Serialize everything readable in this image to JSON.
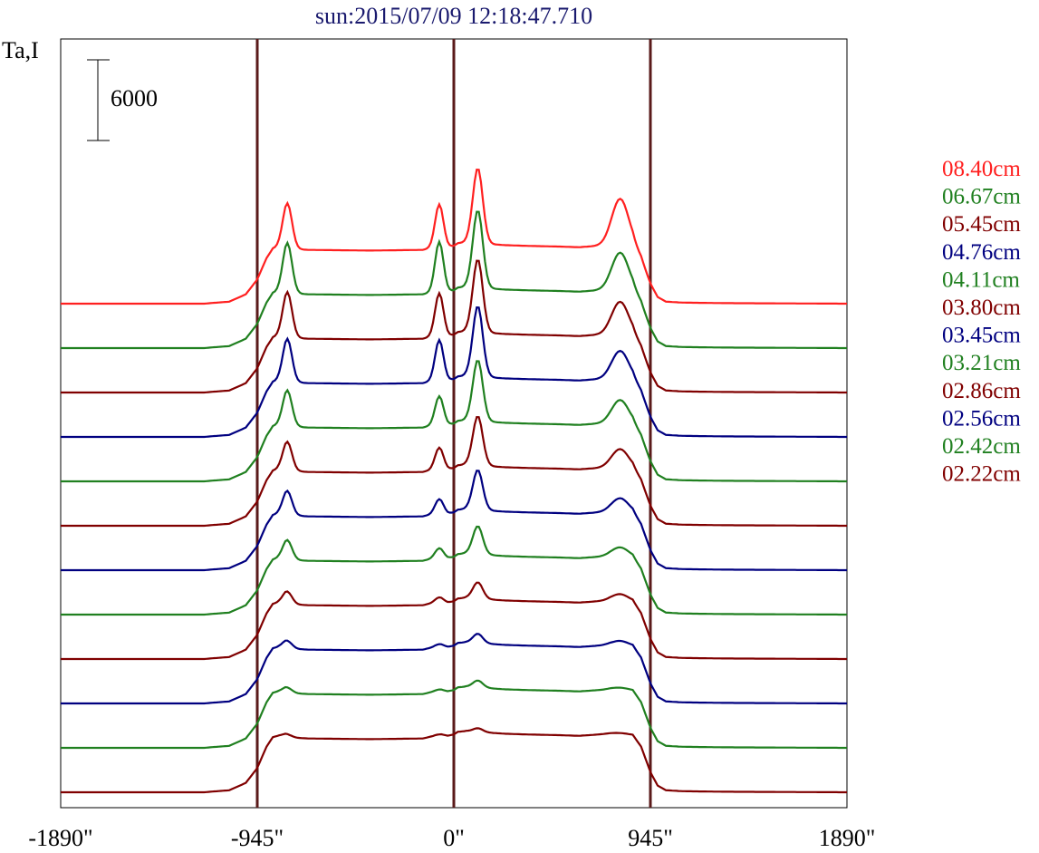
{
  "chart_data": {
    "type": "line",
    "title": "sun:2015/07/09 12:18:47.710",
    "ylabel": "Ta,I",
    "xlim": [
      -1890,
      1890
    ],
    "x_ticks": [
      -1890,
      -945,
      0,
      945,
      1890
    ],
    "x_tick_labels": [
      "-1890\"",
      "-945\"",
      "0\"",
      "945\"",
      "1890\""
    ],
    "x_tick_vlines": [
      -945,
      0,
      945
    ],
    "vline_color": "#5a1a1a",
    "scale_bar": {
      "value": 6000,
      "label": "6000"
    },
    "legend": [
      {
        "label": "08.40cm",
        "color": "#ff2020"
      },
      {
        "label": "06.67cm",
        "color": "#208020"
      },
      {
        "label": "05.45cm",
        "color": "#800000"
      },
      {
        "label": "04.76cm",
        "color": "#000080"
      },
      {
        "label": "04.11cm",
        "color": "#208020"
      },
      {
        "label": "03.80cm",
        "color": "#800000"
      },
      {
        "label": "03.45cm",
        "color": "#000080"
      },
      {
        "label": "03.21cm",
        "color": "#208020"
      },
      {
        "label": "02.86cm",
        "color": "#800000"
      },
      {
        "label": "02.56cm",
        "color": "#000080"
      },
      {
        "label": "02.42cm",
        "color": "#208020"
      },
      {
        "label": "02.22cm",
        "color": "#800000"
      }
    ],
    "profile": {
      "x": [
        -1890,
        -1200,
        -1080,
        -1000,
        -945,
        -900,
        -870,
        -840,
        -810,
        -790,
        -760,
        -700,
        -400,
        -150,
        -90,
        -60,
        -30,
        0,
        20,
        60,
        90,
        120,
        150,
        200,
        250,
        350,
        500,
        600,
        700,
        750,
        800,
        860,
        900,
        945,
        980,
        1020,
        1100,
        1300,
        1890
      ],
      "base": [
        0,
        3,
        150,
        700,
        1800,
        3400,
        4100,
        4200,
        4200,
        4100,
        4050,
        4000,
        3950,
        4000,
        4200,
        4250,
        4200,
        4300,
        4500,
        4550,
        4500,
        4480,
        4450,
        4400,
        4350,
        4300,
        4250,
        4200,
        4300,
        4350,
        4300,
        4250,
        3400,
        1500,
        500,
        150,
        80,
        40,
        0
      ],
      "peaks": [
        {
          "x": -800,
          "w": 22,
          "type": "a"
        },
        {
          "x": -70,
          "w": 20,
          "type": "b"
        },
        {
          "x": 115,
          "w": 24,
          "type": "c"
        },
        {
          "x": 800,
          "w": 40,
          "type": "d"
        }
      ]
    },
    "series": [
      {
        "color": "#ff2020",
        "a": 9500,
        "b": 9000,
        "c": 16000,
        "d": 10000
      },
      {
        "color": "#208020",
        "a": 10500,
        "b": 10500,
        "c": 16500,
        "d": 8000
      },
      {
        "color": "#800000",
        "a": 9500,
        "b": 9000,
        "c": 15500,
        "d": 7000
      },
      {
        "color": "#000080",
        "a": 9000,
        "b": 8500,
        "c": 15000,
        "d": 6000
      },
      {
        "color": "#208020",
        "a": 7500,
        "b": 6000,
        "c": 13000,
        "d": 5000
      },
      {
        "color": "#800000",
        "a": 6000,
        "b": 4500,
        "c": 10500,
        "d": 4000
      },
      {
        "color": "#000080",
        "a": 5000,
        "b": 3000,
        "c": 8500,
        "d": 3000
      },
      {
        "color": "#208020",
        "a": 4000,
        "b": 2000,
        "c": 6000,
        "d": 2000
      },
      {
        "color": "#800000",
        "a": 2500,
        "b": 1000,
        "c": 3500,
        "d": 1500
      },
      {
        "color": "#000080",
        "a": 1500,
        "b": 500,
        "c": 2000,
        "d": 1000
      },
      {
        "color": "#208020",
        "a": 1000,
        "b": 300,
        "c": 1500,
        "d": 500
      },
      {
        "color": "#800000",
        "a": 500,
        "b": 200,
        "c": 800,
        "d": 300
      }
    ]
  }
}
